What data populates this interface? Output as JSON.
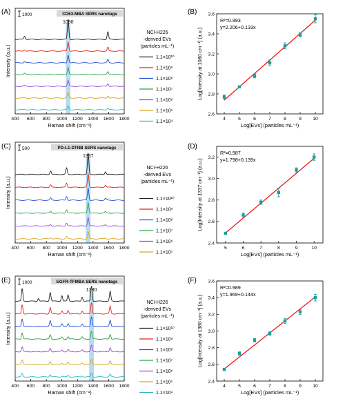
{
  "colors": {
    "highlight": "#a9d6f0",
    "fit_line": "#e8191a",
    "marker": "#1b9e9a",
    "spectra": [
      "#222222",
      "#e8221c",
      "#1f4fd6",
      "#27a246",
      "#9b46d8",
      "#d8a31c",
      "#2bb7c7"
    ]
  },
  "chart_data": [
    {
      "panel": "(A)",
      "type": "line",
      "title": "CD63-MBA SERS nanotags",
      "xlabel": "Raman shift (cm⁻¹)",
      "ylabel": "Intensity (a.u.)",
      "xlim": [
        400,
        1800
      ],
      "xticks": [
        400,
        600,
        800,
        1000,
        1200,
        1400,
        1600,
        1800
      ],
      "scale_bar": "1000",
      "peak_label": "1080",
      "legend_title": [
        "NCI-H226",
        "-derived EVs",
        "(particles mL⁻¹)"
      ],
      "series": [
        {
          "name": "1.1×10¹⁰",
          "peak_heights": {
            "520": 0.5,
            "1080": 3.1,
            "1590": 1.2
          }
        },
        {
          "name": "1.1×10⁹",
          "peak_heights": {
            "520": 0.2,
            "1080": 1.4,
            "1590": 0.6
          }
        },
        {
          "name": "1.1×10⁸",
          "peak_heights": {
            "520": 0.2,
            "1080": 1.2,
            "1590": 0.5
          }
        },
        {
          "name": "1.1×10⁷",
          "peak_heights": {
            "520": 0.2,
            "1080": 1.1,
            "1590": 0.45
          }
        },
        {
          "name": "1.1×10⁶",
          "peak_heights": {
            "520": 0.15,
            "1080": 0.9,
            "1590": 0.4
          }
        },
        {
          "name": "1.1×10⁵",
          "peak_heights": {
            "520": 0.1,
            "1080": 0.8,
            "1590": 0.35
          }
        },
        {
          "name": "1.1×10⁴",
          "peak_heights": {
            "520": 0.1,
            "1080": 0.6,
            "1590": 0.3
          }
        }
      ]
    },
    {
      "panel": "(B)",
      "type": "scatter",
      "xlabel": "Log[EVs] (particles mL⁻¹)",
      "ylabel": "Log[Intensity at 1080 cm⁻¹] (a.u.)",
      "xlim": [
        3.5,
        10.5
      ],
      "ylim": [
        2.6,
        3.6
      ],
      "xticks": [
        4,
        5,
        6,
        7,
        8,
        9,
        10
      ],
      "yticks": [
        2.6,
        2.8,
        3.0,
        3.2,
        3.4,
        3.6
      ],
      "annotation": [
        "R²=0.993",
        "y=2.206+0.133x"
      ],
      "fit": {
        "intercept": 2.206,
        "slope": 0.133
      },
      "x": [
        4,
        5,
        6,
        7,
        8,
        9,
        10
      ],
      "y": [
        2.77,
        2.87,
        2.98,
        3.11,
        3.28,
        3.39,
        3.55
      ],
      "err": [
        0.02,
        0.01,
        0.02,
        0.03,
        0.03,
        0.02,
        0.04
      ]
    },
    {
      "panel": "(C)",
      "type": "line",
      "title": "PD-L1-DTNB SERS nanotags",
      "xlabel": "Raman shift (cm⁻¹)",
      "ylabel": "Intensity (a.u.)",
      "xlim": [
        400,
        1800
      ],
      "xticks": [
        400,
        600,
        800,
        1000,
        1200,
        1400,
        1600,
        1800
      ],
      "scale_bar": "500",
      "peak_label": "1337",
      "legend_title": [
        "NCI-H226",
        "-derived EVs",
        "(particles mL⁻¹)"
      ],
      "series": [
        {
          "name": "1.1×10¹⁰",
          "peak_heights": {
            "855": 0.5,
            "1060": 0.9,
            "1337": 3.0,
            "1560": 0.4
          }
        },
        {
          "name": "1.1×10⁹",
          "peak_heights": {
            "855": 0.35,
            "1060": 0.6,
            "1337": 1.9,
            "1560": 0.3
          }
        },
        {
          "name": "1.1×10⁸",
          "peak_heights": {
            "855": 0.3,
            "1060": 0.55,
            "1337": 1.7,
            "1560": 0.25
          }
        },
        {
          "name": "1.1×10⁷",
          "peak_heights": {
            "855": 0.25,
            "1060": 0.5,
            "1337": 1.5,
            "1560": 0.2
          }
        },
        {
          "name": "1.1×10⁶",
          "peak_heights": {
            "855": 0.2,
            "1060": 0.4,
            "1337": 1.2,
            "1560": 0.15
          }
        },
        {
          "name": "1.1×10⁵",
          "peak_heights": {
            "855": 0.2,
            "1060": 0.35,
            "1337": 1.0,
            "1560": 0.15
          }
        }
      ]
    },
    {
      "panel": "(D)",
      "type": "scatter",
      "xlabel": "Log[EVs] (particles mL⁻¹)",
      "ylabel": "Log[Intensity at 1337 cm⁻¹] (a.u.)",
      "xlim": [
        4.5,
        10.5
      ],
      "ylim": [
        2.4,
        3.3
      ],
      "xticks": [
        5,
        6,
        7,
        8,
        9,
        10
      ],
      "yticks": [
        2.4,
        2.6,
        2.8,
        3.0,
        3.2
      ],
      "annotation": [
        "R²=0.987",
        "y=1.798+0.139x"
      ],
      "fit": {
        "intercept": 1.798,
        "slope": 0.139
      },
      "x": [
        5,
        6,
        7,
        8,
        9,
        10
      ],
      "y": [
        2.49,
        2.66,
        2.78,
        2.87,
        3.08,
        3.2
      ],
      "err": [
        0.01,
        0.02,
        0.02,
        0.04,
        0.02,
        0.03
      ]
    },
    {
      "panel": "(E)",
      "type": "line",
      "title": "EGFR-TFMBA SERS nanotags",
      "xlabel": "Raman shift (cm⁻¹)",
      "ylabel": "Intensity (a.u.)",
      "xlim": [
        400,
        1800
      ],
      "xticks": [
        400,
        600,
        800,
        1000,
        1200,
        1400,
        1600,
        1800
      ],
      "scale_bar": "1000",
      "peak_label": "1380",
      "legend_title": [
        "NCI-H226",
        "-derived EVs",
        "(particles mL⁻¹)"
      ],
      "series": [
        {
          "name": "1.1×10¹⁰",
          "peak_heights": {
            "490": 1.8,
            "700": 0.4,
            "850": 1.3,
            "1000": 0.8,
            "1080": 0.9,
            "1260": 0.6,
            "1380": 2.2,
            "1620": 1.4
          }
        },
        {
          "name": "1.1×10⁹",
          "peak_heights": {
            "490": 1.3,
            "850": 0.9,
            "1000": 0.4,
            "1080": 0.5,
            "1260": 0.4,
            "1380": 1.6,
            "1620": 1.1
          }
        },
        {
          "name": "1.1×10⁸",
          "peak_heights": {
            "490": 1.1,
            "850": 0.8,
            "1000": 0.35,
            "1080": 0.45,
            "1260": 0.35,
            "1380": 1.4,
            "1620": 0.9
          }
        },
        {
          "name": "1.1×10⁷",
          "peak_heights": {
            "490": 0.9,
            "850": 0.6,
            "1000": 0.3,
            "1080": 0.35,
            "1260": 0.3,
            "1380": 1.1,
            "1620": 0.7
          }
        },
        {
          "name": "1.1×10⁶",
          "peak_heights": {
            "490": 0.7,
            "850": 0.5,
            "1000": 0.25,
            "1080": 0.3,
            "1260": 0.25,
            "1380": 0.9,
            "1620": 0.6
          }
        },
        {
          "name": "1.1×10⁵",
          "peak_heights": {
            "490": 0.6,
            "850": 0.4,
            "1000": 0.2,
            "1080": 0.25,
            "1260": 0.2,
            "1380": 0.7,
            "1620": 0.5
          }
        },
        {
          "name": "1.1×10⁴",
          "peak_heights": {
            "490": 0.5,
            "850": 0.35,
            "1000": 0.15,
            "1080": 0.2,
            "1260": 0.15,
            "1380": 0.55,
            "1620": 0.4
          }
        }
      ]
    },
    {
      "panel": "(F)",
      "type": "scatter",
      "xlabel": "Log[EVs] (particles mL⁻¹)",
      "ylabel": "Log[Intensity at 1380 cm⁻¹] (a.u.)",
      "xlim": [
        3.5,
        10.5
      ],
      "ylim": [
        2.4,
        3.6
      ],
      "xticks": [
        4,
        5,
        6,
        7,
        8,
        9,
        10
      ],
      "yticks": [
        2.4,
        2.6,
        2.8,
        3.0,
        3.2,
        3.4,
        3.6
      ],
      "annotation": [
        "R²=0.989",
        "y=1.969+0.144x"
      ],
      "fit": {
        "intercept": 1.969,
        "slope": 0.144
      },
      "x": [
        4,
        5,
        6,
        7,
        8,
        9,
        10
      ],
      "y": [
        2.54,
        2.73,
        2.89,
        2.97,
        3.12,
        3.23,
        3.4
      ],
      "err": [
        0.01,
        0.02,
        0.02,
        0.02,
        0.03,
        0.03,
        0.04
      ]
    }
  ]
}
